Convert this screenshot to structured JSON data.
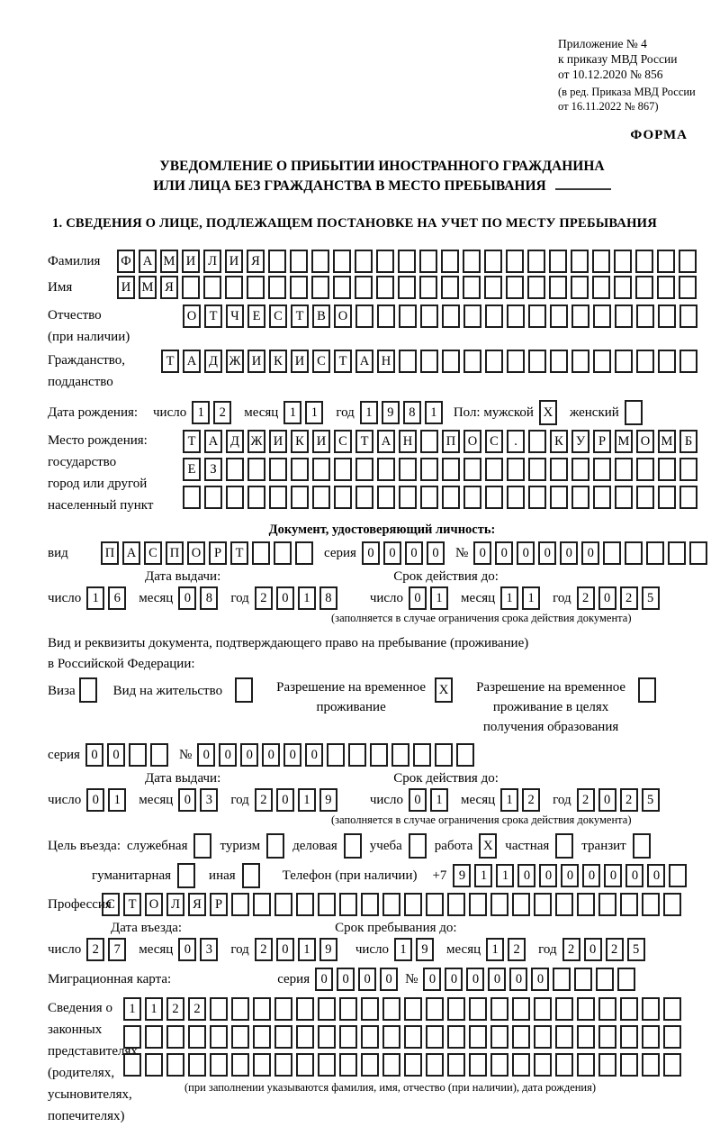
{
  "header": {
    "appendix_line1": "Приложение № 4",
    "appendix_line2": "к приказу МВД России",
    "appendix_line3": "от 10.12.2020 № 856",
    "edition_line1": "(в ред. Приказа МВД России",
    "edition_line2": "от 16.11.2022 № 867)",
    "form_label": "ФОРМА"
  },
  "title": {
    "line1": "УВЕДОМЛЕНИЕ О ПРИБЫТИИ ИНОСТРАННОГО ГРАЖДАНИНА",
    "line2": "ИЛИ ЛИЦА БЕЗ ГРАЖДАНСТВА В МЕСТО ПРЕБЫВАНИЯ"
  },
  "section1": {
    "heading": "1. СВЕДЕНИЯ О ЛИЦЕ, ПОДЛЕЖАЩЕМ ПОСТАНОВКЕ НА УЧЕТ ПО МЕСТУ ПРЕБЫВАНИЯ"
  },
  "labels": {
    "surname": "Фамилия",
    "given_name": "Имя",
    "patronymic": "Отчество",
    "patronymic_note": "(при наличии)",
    "citizenship1": "Гражданство,",
    "citizenship2": "подданство",
    "birth_date": "Дата рождения:",
    "day": "число",
    "month": "месяц",
    "year": "год",
    "sex_male": "Пол: мужской",
    "sex_female": "женский",
    "birth_place1": "Место рождения:",
    "birth_place2": "государство",
    "birth_place3": "город или другой",
    "birth_place4": "населенный пункт",
    "identity_doc": "Документ, удостоверяющий личность:",
    "doc_kind": "вид",
    "series": "серия",
    "number": "№",
    "issue_date": "Дата выдачи:",
    "valid_until": "Срок действия до:",
    "validity_note": "(заполняется в случае ограничения срока действия документа)",
    "residence1": "Вид и реквизиты документа, подтверждающего право на пребывание (проживание)",
    "residence2": "в Российской Федерации:",
    "visa": "Виза",
    "residence_permit": "Вид на жительство",
    "temp_res1": "Разрешение на временное",
    "temp_res2": "проживание",
    "temp_edu1": "Разрешение на временное",
    "temp_edu2": "проживание в целях",
    "temp_edu3": "получения образования",
    "purpose": "Цель въезда:",
    "p_official": "служебная",
    "p_tourism": "туризм",
    "p_business": "деловая",
    "p_study": "учеба",
    "p_work": "работа",
    "p_private": "частная",
    "p_transit": "транзит",
    "p_humanitarian": "гуманитарная",
    "p_other": "иная",
    "phone": "Телефон (при наличии)",
    "phone_code": "+7",
    "profession": "Профессия",
    "entry_date": "Дата въезда:",
    "stay_until": "Срок пребывания до:",
    "migration_card": "Миграционная карта:",
    "rep1": "Сведения о",
    "rep2": "законных",
    "rep3": "представителях",
    "rep4": "(родителях,",
    "rep5": "усыновителях,",
    "rep6": "попечителях)",
    "rep_note": "(при заполнении указываются фамилия, имя, отчество (при наличии), дата рождения)"
  },
  "cells": {
    "surname": {
      "value": "ФАМИЛИЯ",
      "count": 27
    },
    "given_name": {
      "value": "ИМЯ",
      "count": 27
    },
    "patronymic": {
      "value": "ОТЧЕСТВО",
      "count": 24
    },
    "citizenship": {
      "value": "ТАДЖИКИСТАН",
      "count": 25
    },
    "birth_day": {
      "value": "12",
      "count": 2
    },
    "birth_month": {
      "value": "11",
      "count": 2
    },
    "birth_year": {
      "value": "1981",
      "count": 4
    },
    "birth_place_row1": {
      "value": "ТАДЖИКИСТАН ПОС. КУРМОМБ",
      "count": 24
    },
    "birth_place_row2": {
      "value": "ЕЗ",
      "count": 24
    },
    "birth_place_row3": {
      "value": "",
      "count": 24
    },
    "doc_kind": {
      "value": "ПАСПОРТ",
      "count": 10
    },
    "doc_series": {
      "value": "0000",
      "count": 4
    },
    "doc_number": {
      "value": "000000",
      "count": 11
    },
    "doc_issue_day": {
      "value": "16",
      "count": 2
    },
    "doc_issue_month": {
      "value": "08",
      "count": 2
    },
    "doc_issue_year": {
      "value": "2018",
      "count": 4
    },
    "doc_until_day": {
      "value": "01",
      "count": 2
    },
    "doc_until_month": {
      "value": "11",
      "count": 2
    },
    "doc_until_year": {
      "value": "2025",
      "count": 4
    },
    "permit_series": {
      "value": "00",
      "count": 4
    },
    "permit_number": {
      "value": "000000",
      "count": 13
    },
    "permit_issue_day": {
      "value": "01",
      "count": 2
    },
    "permit_issue_month": {
      "value": "03",
      "count": 2
    },
    "permit_issue_year": {
      "value": "2019",
      "count": 4
    },
    "permit_until_day": {
      "value": "01",
      "count": 2
    },
    "permit_until_month": {
      "value": "12",
      "count": 2
    },
    "permit_until_year": {
      "value": "2025",
      "count": 4
    },
    "phone_digits": {
      "value": "9110000000",
      "count": 11
    },
    "profession": {
      "value": "СТОЛЯР",
      "count": 27
    },
    "entry_day": {
      "value": "27",
      "count": 2
    },
    "entry_month": {
      "value": "03",
      "count": 2
    },
    "entry_year": {
      "value": "2019",
      "count": 4
    },
    "stay_day": {
      "value": "19",
      "count": 2
    },
    "stay_month": {
      "value": "12",
      "count": 2
    },
    "stay_year": {
      "value": "2025",
      "count": 4
    },
    "mig_series": {
      "value": "0000",
      "count": 4
    },
    "mig_number": {
      "value": "000000",
      "count": 10
    },
    "rep_row1": {
      "value": "1122",
      "count": 26
    },
    "rep_row2": {
      "value": "",
      "count": 26
    },
    "rep_row3": {
      "value": "",
      "count": 26
    }
  },
  "checks": {
    "sex_male": "X",
    "sex_female": "",
    "visa": "",
    "residence_permit": "",
    "temp_residence": "X",
    "temp_residence_edu": "",
    "purpose_official": "",
    "purpose_tourism": "",
    "purpose_business": "",
    "purpose_study": "",
    "purpose_work": "X",
    "purpose_private": "",
    "purpose_transit": "",
    "purpose_humanitarian": "",
    "purpose_other": ""
  }
}
